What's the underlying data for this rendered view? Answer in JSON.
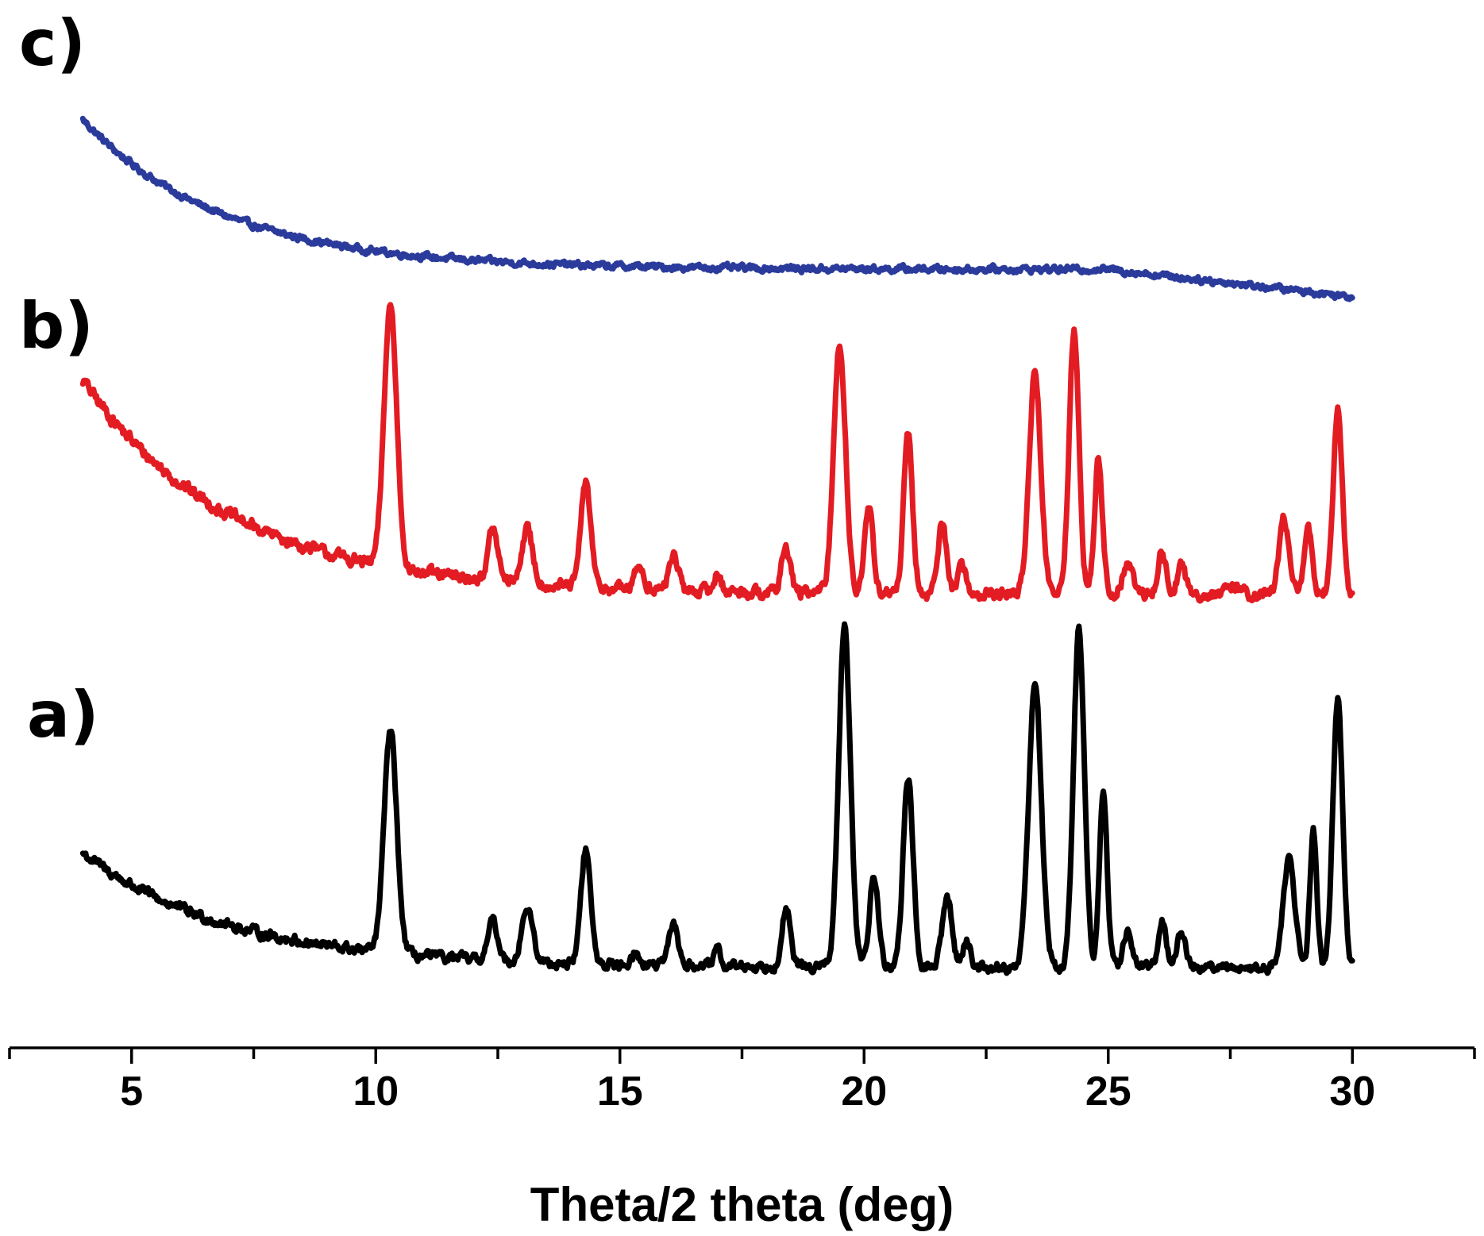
{
  "chart_data": {
    "type": "line",
    "title": "",
    "xlabel": "Theta/2 theta (deg)",
    "ylabel": "",
    "xlim": [
      2.5,
      32.5
    ],
    "x_ticks_major": [
      5,
      10,
      15,
      20,
      25,
      30
    ],
    "x_tick_labels": [
      "5",
      "10",
      "15",
      "20",
      "25",
      "30"
    ],
    "x_ticks_minor": [
      2.5,
      7.5,
      12.5,
      17.5,
      22.5,
      27.5,
      32.5
    ],
    "grid": false,
    "legend": "none",
    "y_axis_visible": false,
    "x_range_of_data": [
      4,
      30
    ],
    "series": [
      {
        "label": "c)",
        "color": "#2b3b9c",
        "baseline_decay": {
          "start": 0.76,
          "end": 0.1,
          "rate": 0.35
        },
        "tail": {
          "from": 25,
          "drop": 0.12
        },
        "noise": 0.025,
        "peaks": []
      },
      {
        "label": "b)",
        "color": "#e31c23",
        "baseline_decay": {
          "start": 0.74,
          "end": 0.03,
          "rate": 0.33
        },
        "tail": {
          "from": 25,
          "drop": 0.0
        },
        "noise": 0.035,
        "peaks": [
          [
            10.3,
            0.87,
            0.13
          ],
          [
            12.4,
            0.17,
            0.1
          ],
          [
            13.1,
            0.18,
            0.11
          ],
          [
            14.3,
            0.35,
            0.1
          ],
          [
            15.4,
            0.08,
            0.09
          ],
          [
            16.1,
            0.12,
            0.09
          ],
          [
            17.0,
            0.06,
            0.07
          ],
          [
            18.4,
            0.15,
            0.09
          ],
          [
            19.5,
            0.83,
            0.12
          ],
          [
            20.1,
            0.27,
            0.09
          ],
          [
            20.9,
            0.52,
            0.09
          ],
          [
            21.6,
            0.23,
            0.09
          ],
          [
            22.0,
            0.1,
            0.08
          ],
          [
            23.5,
            0.73,
            0.12
          ],
          [
            24.3,
            0.87,
            0.1
          ],
          [
            24.8,
            0.45,
            0.08
          ],
          [
            25.4,
            0.1,
            0.1
          ],
          [
            26.1,
            0.14,
            0.08
          ],
          [
            26.5,
            0.1,
            0.08
          ],
          [
            27.6,
            0.03,
            0.1
          ],
          [
            28.6,
            0.25,
            0.1
          ],
          [
            29.1,
            0.22,
            0.08
          ],
          [
            29.7,
            0.62,
            0.09
          ]
        ]
      },
      {
        "label": "a)",
        "color": "#000000",
        "baseline_decay": {
          "start": 0.43,
          "end": 0.05,
          "rate": 0.33
        },
        "tail": {
          "from": 25,
          "drop": 0.0
        },
        "noise": 0.03,
        "peaks": [
          [
            10.3,
            0.74,
            0.13
          ],
          [
            12.4,
            0.13,
            0.1
          ],
          [
            13.1,
            0.18,
            0.11
          ],
          [
            14.3,
            0.38,
            0.1
          ],
          [
            15.3,
            0.04,
            0.08
          ],
          [
            16.1,
            0.14,
            0.09
          ],
          [
            17.0,
            0.05,
            0.07
          ],
          [
            18.4,
            0.19,
            0.09
          ],
          [
            19.6,
            1.12,
            0.12
          ],
          [
            20.2,
            0.31,
            0.09
          ],
          [
            20.9,
            0.63,
            0.1
          ],
          [
            21.7,
            0.23,
            0.1
          ],
          [
            22.1,
            0.09,
            0.08
          ],
          [
            23.5,
            0.94,
            0.13
          ],
          [
            24.4,
            1.12,
            0.11
          ],
          [
            24.9,
            0.57,
            0.08
          ],
          [
            25.4,
            0.12,
            0.09
          ],
          [
            26.1,
            0.16,
            0.08
          ],
          [
            26.5,
            0.12,
            0.09
          ],
          [
            28.7,
            0.36,
            0.12
          ],
          [
            29.2,
            0.46,
            0.07
          ],
          [
            29.7,
            0.9,
            0.1
          ]
        ]
      }
    ]
  }
}
